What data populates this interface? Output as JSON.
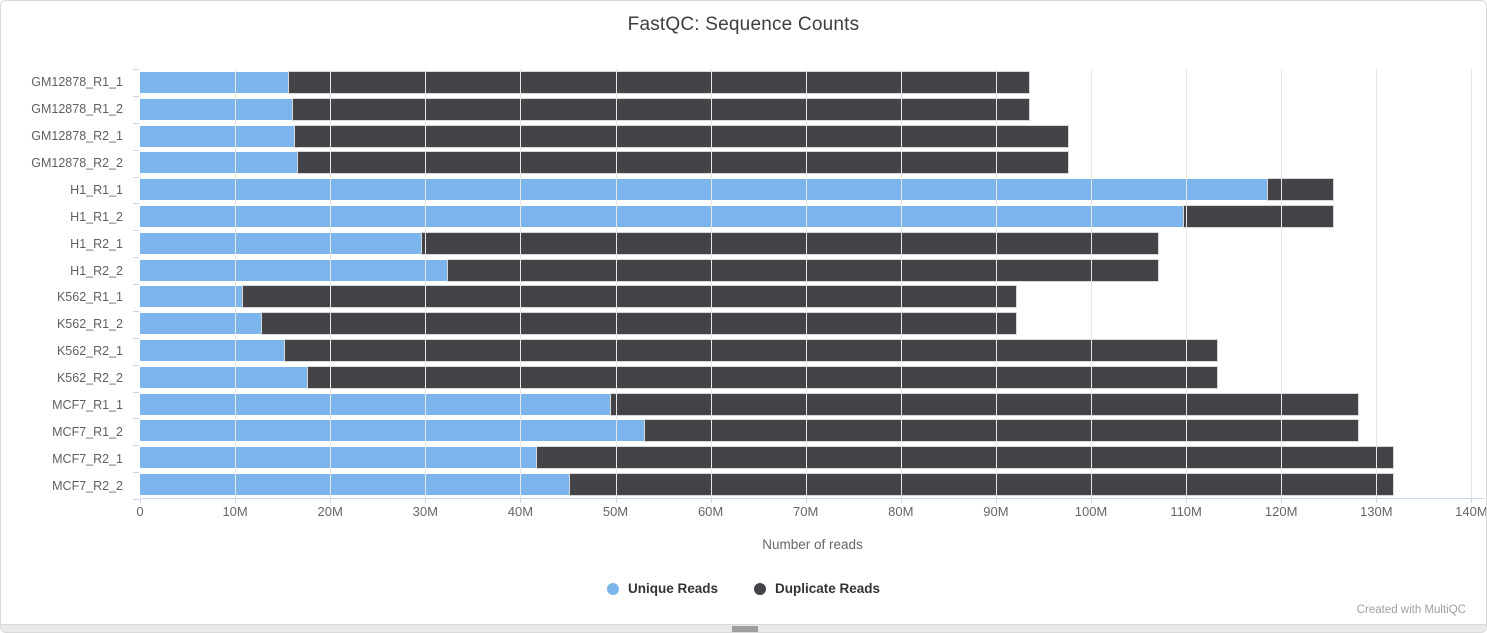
{
  "title": "FastQC: Sequence Counts",
  "xaxis_title": "Number of reads",
  "footer_credit": "Created with MultiQC",
  "colors": {
    "unique": "#7cb5ec",
    "duplicate": "#434348",
    "gridline": "#e6e6e6",
    "axis_line": "#ccd6eb",
    "label_text": "#606060"
  },
  "legend": [
    {
      "label": "Unique Reads",
      "color": "#7cb5ec"
    },
    {
      "label": "Duplicate Reads",
      "color": "#434348"
    }
  ],
  "chart_data": {
    "type": "bar",
    "orientation": "horizontal",
    "stacked": true,
    "title": "FastQC: Sequence Counts",
    "xlabel": "Number of reads",
    "unit": "millions of reads",
    "grid": true,
    "legend_position": "bottom",
    "xlim": [
      0,
      140
    ],
    "xtick_step": 10,
    "xtick_labels": [
      "0",
      "10M",
      "20M",
      "30M",
      "40M",
      "50M",
      "60M",
      "70M",
      "80M",
      "90M",
      "100M",
      "110M",
      "120M",
      "130M",
      "140M"
    ],
    "categories": [
      "GM12878_R1_1",
      "GM12878_R1_2",
      "GM12878_R2_1",
      "GM12878_R2_2",
      "H1_R1_1",
      "H1_R1_2",
      "H1_R2_1",
      "H1_R2_2",
      "K562_R1_1",
      "K562_R1_2",
      "K562_R2_1",
      "K562_R2_2",
      "MCF7_R1_1",
      "MCF7_R1_2",
      "MCF7_R2_1",
      "MCF7_R2_2"
    ],
    "series": [
      {
        "name": "Unique Reads",
        "color": "#7cb5ec",
        "values": [
          15.7,
          16.1,
          16.3,
          16.6,
          118.6,
          109.8,
          29.7,
          32.4,
          10.8,
          12.8,
          15.2,
          17.7,
          49.5,
          53.1,
          41.7,
          45.2
        ]
      },
      {
        "name": "Duplicate Reads",
        "color": "#434348",
        "values": [
          77.8,
          77.4,
          81.3,
          81.0,
          6.8,
          15.6,
          77.3,
          74.6,
          81.3,
          79.3,
          98.1,
          95.6,
          78.6,
          75.0,
          90.1,
          86.6
        ]
      }
    ],
    "stack_totals": [
      93.5,
      93.5,
      97.6,
      97.6,
      125.4,
      125.4,
      107.0,
      107.0,
      92.1,
      92.1,
      113.3,
      113.3,
      128.1,
      128.1,
      131.8,
      131.8
    ]
  }
}
